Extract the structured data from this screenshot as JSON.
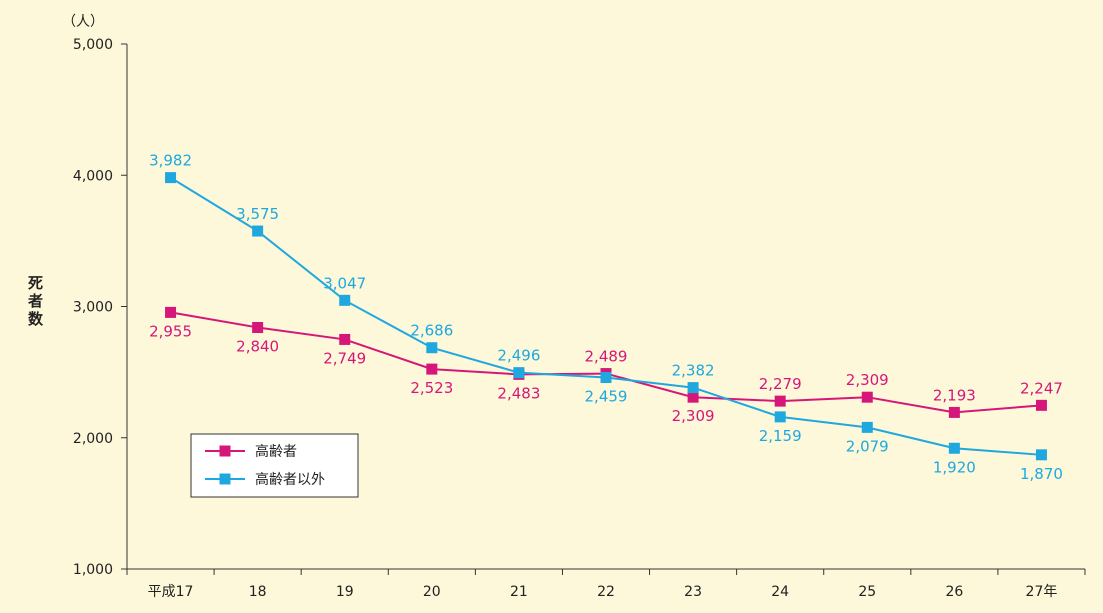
{
  "chart_data": {
    "type": "line",
    "categories": [
      "平成17",
      "18",
      "19",
      "20",
      "21",
      "22",
      "23",
      "24",
      "25",
      "26",
      "27年"
    ],
    "series": [
      {
        "name": "高齢者",
        "color": "#d6177a",
        "values": [
          2955,
          2840,
          2749,
          2523,
          2483,
          2489,
          2309,
          2279,
          2309,
          2193,
          2247
        ]
      },
      {
        "name": "高齢者以外",
        "color": "#1fa8e0",
        "values": [
          3982,
          3575,
          3047,
          2686,
          2496,
          2459,
          2382,
          2159,
          2079,
          1920,
          1870
        ]
      }
    ],
    "y_ticks": [
      "1,000",
      "2,000",
      "3,000",
      "4,000",
      "5,000"
    ],
    "ylim": [
      1000,
      5000
    ],
    "ylabel": "死者数",
    "yunit": "（人）",
    "legend_position": "lower-left",
    "grid": false
  }
}
